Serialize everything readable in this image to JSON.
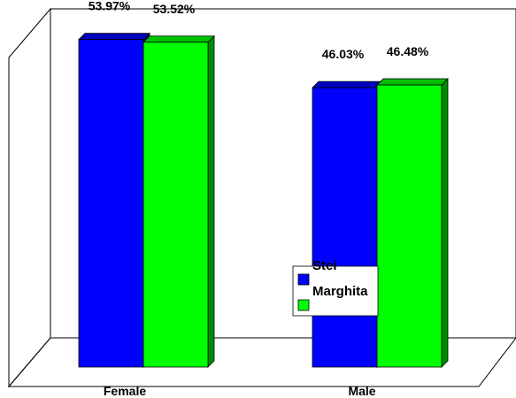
{
  "chart_data": {
    "type": "bar",
    "title": "",
    "xlabel": "",
    "ylabel": "",
    "categories": [
      "Female",
      "Male"
    ],
    "series": [
      {
        "name": "Stei",
        "values": [
          53.97,
          46.03
        ],
        "labels": [
          "53.97%",
          "46.03%"
        ],
        "color": "#0000ff"
      },
      {
        "name": "Marghita",
        "values": [
          53.52,
          46.48
        ],
        "labels": [
          "53.52%",
          "46.48%"
        ],
        "color": "#00ff00"
      }
    ],
    "ylim": [
      0,
      60
    ],
    "grid": false,
    "legend": "center-right",
    "style": "3d-bar"
  }
}
